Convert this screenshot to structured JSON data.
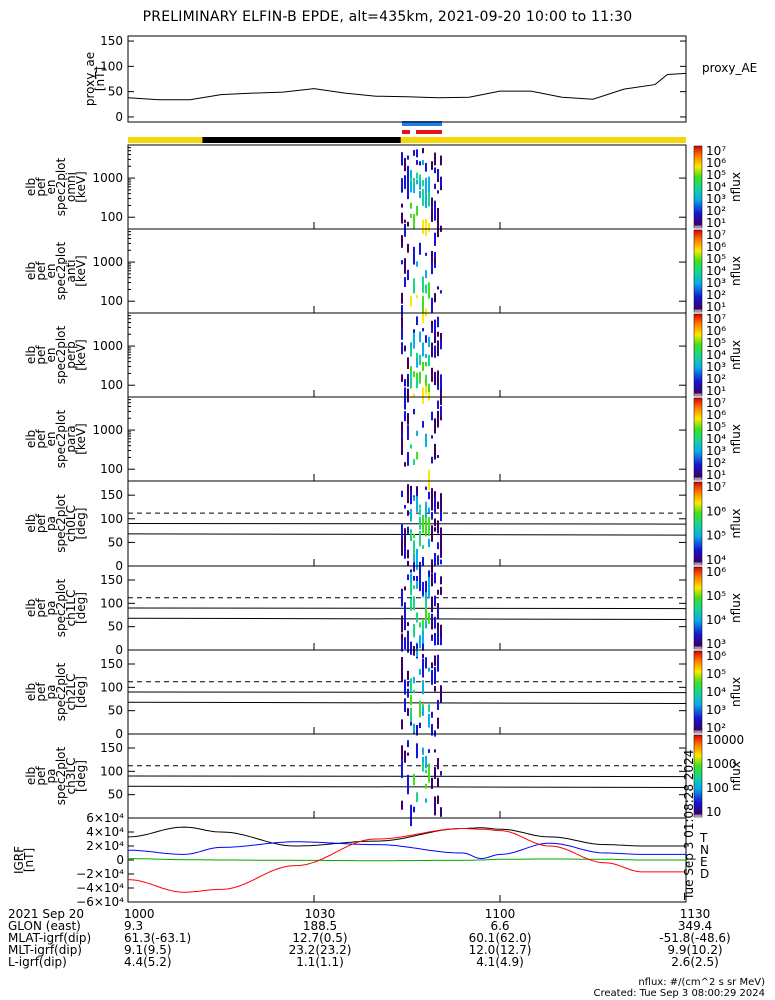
{
  "title": "PRELIMINARY ELFIN-B EPDE, alt=435km, 2021-09-20 10:00 to 11:30",
  "chart_data": [
    {
      "type": "line",
      "name": "proxy_ae",
      "ylabel": [
        "proxy_ae",
        "[nT]"
      ],
      "legend": "proxy_AE",
      "ylim": [
        -10,
        160
      ],
      "yticks": [
        "150",
        "100",
        "50",
        "0"
      ],
      "x_minutes": [
        0,
        5,
        10,
        15,
        20,
        25,
        30,
        35,
        40,
        45,
        50,
        55,
        60,
        65,
        70,
        75,
        80,
        85,
        87,
        90
      ],
      "values": [
        38,
        34,
        34,
        44,
        47,
        49,
        56,
        47,
        41,
        40,
        38,
        39,
        51,
        51,
        39,
        35,
        55,
        64,
        84,
        86
      ]
    },
    {
      "type": "heatmap",
      "name": "en_omni",
      "ylabel": [
        "elb",
        "pef",
        "en",
        "spec2plot",
        "omni",
        "[keV]"
      ],
      "ylim": [
        50,
        7000
      ],
      "yscale": "log",
      "yticks": [
        "1000",
        "100"
      ],
      "colorbar": {
        "ticks": [
          "10^7",
          "10^6",
          "10^5",
          "10^4",
          "10^3",
          "10^2",
          "10^1"
        ],
        "label": "nflux"
      }
    },
    {
      "type": "heatmap",
      "name": "en_anti",
      "ylabel": [
        "elb",
        "pef",
        "en",
        "spec2plot",
        "anti",
        "[keV]"
      ],
      "ylim": [
        50,
        7000
      ],
      "yscale": "log",
      "yticks": [
        "1000",
        "100"
      ],
      "colorbar": {
        "ticks": [
          "10^7",
          "10^6",
          "10^5",
          "10^4",
          "10^3",
          "10^2",
          "10^1"
        ],
        "label": "nflux"
      }
    },
    {
      "type": "heatmap",
      "name": "en_perp",
      "ylabel": [
        "elb",
        "pef",
        "en",
        "spec2plot",
        "perp",
        "[keV]"
      ],
      "ylim": [
        50,
        7000
      ],
      "yscale": "log",
      "yticks": [
        "1000",
        "100"
      ],
      "colorbar": {
        "ticks": [
          "10^7",
          "10^6",
          "10^5",
          "10^4",
          "10^3",
          "10^2",
          "10^1"
        ],
        "label": "nflux"
      }
    },
    {
      "type": "heatmap",
      "name": "en_para",
      "ylabel": [
        "elb",
        "pef",
        "en",
        "spec2plot",
        "para",
        "[keV]"
      ],
      "ylim": [
        50,
        7000
      ],
      "yscale": "log",
      "yticks": [
        "1000",
        "100"
      ],
      "colorbar": {
        "ticks": [
          "10^7",
          "10^6",
          "10^5",
          "10^4",
          "10^3",
          "10^2",
          "10^1"
        ],
        "label": "nflux"
      }
    },
    {
      "type": "heatmap",
      "name": "pa_ch0",
      "ylabel": [
        "elb",
        "pef",
        "pa",
        "spec2plot",
        "ch0LC",
        "[deg]"
      ],
      "ylim": [
        0,
        180
      ],
      "yticks": [
        "150",
        "100",
        "50",
        "0"
      ],
      "colorbar": {
        "ticks": [
          "10^7",
          "10^6",
          "10^5",
          "10^4"
        ],
        "label": "nflux"
      }
    },
    {
      "type": "heatmap",
      "name": "pa_ch1",
      "ylabel": [
        "elb",
        "pef",
        "pa",
        "spec2plot",
        "ch1LC",
        "[deg]"
      ],
      "ylim": [
        0,
        180
      ],
      "yticks": [
        "150",
        "100",
        "50",
        "0"
      ],
      "colorbar": {
        "ticks": [
          "10^6",
          "10^5",
          "10^4",
          "10^3"
        ],
        "label": "nflux"
      }
    },
    {
      "type": "heatmap",
      "name": "pa_ch2",
      "ylabel": [
        "elb",
        "pef",
        "pa",
        "spec2plot",
        "ch2LC",
        "[deg]"
      ],
      "ylim": [
        0,
        180
      ],
      "yticks": [
        "150",
        "100",
        "50",
        "0"
      ],
      "colorbar": {
        "ticks": [
          "10^6",
          "10^5",
          "10^4",
          "10^3",
          "10^2"
        ],
        "label": "nflux"
      }
    },
    {
      "type": "heatmap",
      "name": "pa_ch3",
      "ylabel": [
        "elb",
        "pef",
        "pa",
        "spec2plot",
        "ch3LC",
        "[deg]"
      ],
      "ylim": [
        0,
        180
      ],
      "yticks": [
        "150",
        "100",
        "50"
      ],
      "colorbar": {
        "ticks": [
          "10000",
          "1000",
          "100",
          "10"
        ],
        "label": "nflux"
      }
    },
    {
      "type": "line",
      "name": "igrf",
      "ylabel": [
        "IGRF",
        "[nT]"
      ],
      "ylim": [
        -60000,
        60000
      ],
      "yticks": [
        "6×10⁴",
        "4×10⁴",
        "2×10⁴",
        "0",
        "−2×10⁴",
        "−4×10⁴",
        "−6×10⁴"
      ],
      "x_minutes": [
        0,
        9,
        15,
        27,
        40,
        54,
        57,
        60,
        68,
        77,
        83,
        90
      ],
      "series": [
        {
          "name": "T",
          "color": "#000000",
          "values": [
            33000,
            47000,
            40000,
            20000,
            27000,
            45000,
            46000,
            44000,
            33000,
            22000,
            20000,
            20000
          ]
        },
        {
          "name": "N",
          "color": "#0000ff",
          "values": [
            14000,
            8000,
            18000,
            26000,
            22000,
            10000,
            2000,
            8000,
            24000,
            10000,
            8000,
            8000
          ]
        },
        {
          "name": "E",
          "color": "#00aa00",
          "values": [
            2000,
            500,
            0,
            -500,
            -1000,
            -500,
            0,
            1000,
            1500,
            1000,
            0,
            0
          ]
        },
        {
          "name": "D",
          "color": "#ff0000",
          "values": [
            -28000,
            -46000,
            -42000,
            -8000,
            30000,
            45000,
            44000,
            42000,
            20000,
            -4000,
            -17000,
            -17000
          ]
        }
      ]
    }
  ],
  "dashed_level_deg": 112,
  "solid_levels_deg": [
    90,
    68
  ],
  "x_ticks": [
    "1000",
    "1030",
    "1100",
    "1130"
  ],
  "footer_rows": [
    {
      "label": "2021 Sep 20",
      "values": [
        "1000",
        "",
        "1030",
        "1100",
        "1130"
      ]
    },
    {
      "label": "GLON (east)",
      "values": [
        "9.3",
        "",
        "188.5",
        "6.6",
        "349.4"
      ]
    },
    {
      "label": "MLAT-igrf(dip)",
      "values": [
        "61.3(-63.1)",
        "",
        "12.7(0.5)",
        "60.1(62.0)",
        "-51.8(-48.6)"
      ]
    },
    {
      "label": "MLT-igrf(dip)",
      "values": [
        "9.1(9.5)",
        "",
        "23.2(23.2)",
        "12.0(12.7)",
        "9.9(10.2)"
      ]
    },
    {
      "label": "L-igrf(dip)",
      "values": [
        "4.4(5.2)",
        "",
        "1.1(1.1)",
        "4.1(4.9)",
        "2.6(2.5)"
      ]
    }
  ],
  "nflux_units": "nflux: #/(cm^2 s sr MeV)",
  "created": "Created: Tue Sep  3 08:00:29 2024",
  "side_stamp": "Tue Sep  3 01:08:28 2024",
  "colors": {
    "yellow": "#f5d60a",
    "black": "#000000",
    "blue": "#1f7ee8",
    "red": "#e5141c"
  }
}
